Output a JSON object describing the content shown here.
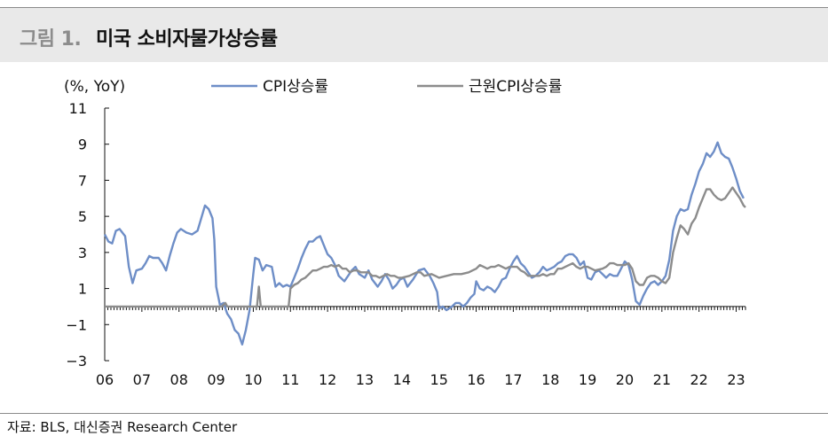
{
  "header": {
    "fig_label": "그림 1.",
    "fig_title": "미국 소비자물가상승률"
  },
  "source": "자료: BLS, 대신증권 Research Center",
  "chart_data": {
    "type": "line",
    "unit_label": "(%, YoY)",
    "ylim": [
      -3,
      11
    ],
    "yticks": [
      "11",
      "9",
      "7",
      "5",
      "3",
      "1",
      "−1",
      "−3"
    ],
    "xticks": [
      "06",
      "07",
      "08",
      "09",
      "10",
      "11",
      "12",
      "13",
      "14",
      "15",
      "16",
      "17",
      "18",
      "19",
      "20",
      "21",
      "22",
      "23"
    ],
    "x_range": [
      2006.0,
      2023.25
    ],
    "legend_placement": "top",
    "series": [
      {
        "name": "CPI상승률",
        "color": "#6e8ec7",
        "points": [
          [
            2006.0,
            4.0
          ],
          [
            2006.1,
            3.6
          ],
          [
            2006.2,
            3.5
          ],
          [
            2006.3,
            4.2
          ],
          [
            2006.4,
            4.3
          ],
          [
            2006.55,
            3.9
          ],
          [
            2006.65,
            2.2
          ],
          [
            2006.75,
            1.3
          ],
          [
            2006.85,
            2.0
          ],
          [
            2007.0,
            2.1
          ],
          [
            2007.1,
            2.4
          ],
          [
            2007.2,
            2.8
          ],
          [
            2007.3,
            2.7
          ],
          [
            2007.45,
            2.7
          ],
          [
            2007.55,
            2.4
          ],
          [
            2007.65,
            2.0
          ],
          [
            2007.75,
            2.8
          ],
          [
            2007.85,
            3.5
          ],
          [
            2007.95,
            4.1
          ],
          [
            2008.05,
            4.3
          ],
          [
            2008.2,
            4.1
          ],
          [
            2008.35,
            4.0
          ],
          [
            2008.5,
            4.2
          ],
          [
            2008.6,
            4.9
          ],
          [
            2008.7,
            5.6
          ],
          [
            2008.8,
            5.4
          ],
          [
            2008.9,
            4.9
          ],
          [
            2008.95,
            3.7
          ],
          [
            2009.0,
            1.1
          ],
          [
            2009.1,
            0.1
          ],
          [
            2009.2,
            0.2
          ],
          [
            2009.3,
            -0.4
          ],
          [
            2009.4,
            -0.7
          ],
          [
            2009.5,
            -1.3
          ],
          [
            2009.6,
            -1.5
          ],
          [
            2009.7,
            -2.1
          ],
          [
            2009.8,
            -1.3
          ],
          [
            2009.9,
            -0.2
          ],
          [
            2010.0,
            1.8
          ],
          [
            2010.05,
            2.7
          ],
          [
            2010.15,
            2.6
          ],
          [
            2010.25,
            2.0
          ],
          [
            2010.35,
            2.3
          ],
          [
            2010.5,
            2.2
          ],
          [
            2010.6,
            1.1
          ],
          [
            2010.7,
            1.3
          ],
          [
            2010.8,
            1.1
          ],
          [
            2010.9,
            1.2
          ],
          [
            2011.0,
            1.1
          ],
          [
            2011.1,
            1.6
          ],
          [
            2011.2,
            2.1
          ],
          [
            2011.3,
            2.7
          ],
          [
            2011.4,
            3.2
          ],
          [
            2011.5,
            3.6
          ],
          [
            2011.6,
            3.6
          ],
          [
            2011.7,
            3.8
          ],
          [
            2011.8,
            3.9
          ],
          [
            2011.9,
            3.4
          ],
          [
            2012.0,
            2.9
          ],
          [
            2012.1,
            2.7
          ],
          [
            2012.2,
            2.3
          ],
          [
            2012.3,
            1.7
          ],
          [
            2012.45,
            1.4
          ],
          [
            2012.55,
            1.7
          ],
          [
            2012.65,
            2.0
          ],
          [
            2012.75,
            2.2
          ],
          [
            2012.85,
            1.8
          ],
          [
            2013.0,
            1.6
          ],
          [
            2013.1,
            2.0
          ],
          [
            2013.2,
            1.5
          ],
          [
            2013.35,
            1.1
          ],
          [
            2013.45,
            1.4
          ],
          [
            2013.55,
            1.8
          ],
          [
            2013.65,
            1.5
          ],
          [
            2013.75,
            1.0
          ],
          [
            2013.85,
            1.2
          ],
          [
            2013.95,
            1.5
          ],
          [
            2014.05,
            1.6
          ],
          [
            2014.15,
            1.1
          ],
          [
            2014.3,
            1.5
          ],
          [
            2014.45,
            2.0
          ],
          [
            2014.6,
            2.1
          ],
          [
            2014.75,
            1.7
          ],
          [
            2014.85,
            1.3
          ],
          [
            2014.95,
            0.8
          ],
          [
            2015.0,
            -0.1
          ],
          [
            2015.1,
            0.0
          ],
          [
            2015.2,
            -0.2
          ],
          [
            2015.35,
            0.0
          ],
          [
            2015.45,
            0.2
          ],
          [
            2015.55,
            0.2
          ],
          [
            2015.65,
            0.0
          ],
          [
            2015.75,
            0.2
          ],
          [
            2015.85,
            0.5
          ],
          [
            2015.95,
            0.7
          ],
          [
            2016.0,
            1.4
          ],
          [
            2016.1,
            1.0
          ],
          [
            2016.2,
            0.9
          ],
          [
            2016.3,
            1.1
          ],
          [
            2016.4,
            1.0
          ],
          [
            2016.5,
            0.8
          ],
          [
            2016.6,
            1.1
          ],
          [
            2016.7,
            1.5
          ],
          [
            2016.8,
            1.6
          ],
          [
            2016.9,
            2.1
          ],
          [
            2017.0,
            2.5
          ],
          [
            2017.1,
            2.8
          ],
          [
            2017.2,
            2.4
          ],
          [
            2017.3,
            2.2
          ],
          [
            2017.4,
            1.9
          ],
          [
            2017.5,
            1.6
          ],
          [
            2017.6,
            1.7
          ],
          [
            2017.7,
            1.9
          ],
          [
            2017.8,
            2.2
          ],
          [
            2017.9,
            2.0
          ],
          [
            2018.0,
            2.1
          ],
          [
            2018.1,
            2.2
          ],
          [
            2018.2,
            2.4
          ],
          [
            2018.3,
            2.5
          ],
          [
            2018.4,
            2.8
          ],
          [
            2018.5,
            2.9
          ],
          [
            2018.6,
            2.9
          ],
          [
            2018.7,
            2.7
          ],
          [
            2018.8,
            2.3
          ],
          [
            2018.9,
            2.5
          ],
          [
            2019.0,
            1.6
          ],
          [
            2019.1,
            1.5
          ],
          [
            2019.2,
            1.9
          ],
          [
            2019.3,
            2.0
          ],
          [
            2019.4,
            1.8
          ],
          [
            2019.5,
            1.6
          ],
          [
            2019.6,
            1.8
          ],
          [
            2019.7,
            1.7
          ],
          [
            2019.8,
            1.7
          ],
          [
            2019.9,
            2.1
          ],
          [
            2020.0,
            2.5
          ],
          [
            2020.1,
            2.3
          ],
          [
            2020.2,
            1.5
          ],
          [
            2020.3,
            0.3
          ],
          [
            2020.4,
            0.1
          ],
          [
            2020.5,
            0.6
          ],
          [
            2020.6,
            1.0
          ],
          [
            2020.7,
            1.3
          ],
          [
            2020.8,
            1.4
          ],
          [
            2020.9,
            1.2
          ],
          [
            2021.0,
            1.4
          ],
          [
            2021.1,
            1.7
          ],
          [
            2021.2,
            2.6
          ],
          [
            2021.3,
            4.2
          ],
          [
            2021.4,
            5.0
          ],
          [
            2021.5,
            5.4
          ],
          [
            2021.6,
            5.3
          ],
          [
            2021.7,
            5.4
          ],
          [
            2021.8,
            6.2
          ],
          [
            2021.9,
            6.8
          ],
          [
            2022.0,
            7.5
          ],
          [
            2022.1,
            7.9
          ],
          [
            2022.2,
            8.5
          ],
          [
            2022.3,
            8.3
          ],
          [
            2022.4,
            8.6
          ],
          [
            2022.5,
            9.1
          ],
          [
            2022.6,
            8.5
          ],
          [
            2022.7,
            8.3
          ],
          [
            2022.8,
            8.2
          ],
          [
            2022.9,
            7.7
          ],
          [
            2023.0,
            7.1
          ],
          [
            2023.1,
            6.4
          ],
          [
            2023.2,
            6.0
          ]
        ]
      },
      {
        "name": "근원CPI상승률",
        "color": "#8c8c8c",
        "points": [
          [
            2006.0,
            0.0
          ],
          [
            2008.0,
            0.0
          ],
          [
            2009.0,
            0.0
          ],
          [
            2009.15,
            0.0
          ],
          [
            2009.25,
            0.2
          ],
          [
            2009.3,
            0.0
          ],
          [
            2010.1,
            0.0
          ],
          [
            2010.15,
            1.1
          ],
          [
            2010.2,
            0.0
          ],
          [
            2010.95,
            0.0
          ],
          [
            2011.0,
            1.0
          ],
          [
            2011.1,
            1.2
          ],
          [
            2011.2,
            1.3
          ],
          [
            2011.3,
            1.5
          ],
          [
            2011.4,
            1.6
          ],
          [
            2011.5,
            1.8
          ],
          [
            2011.6,
            2.0
          ],
          [
            2011.7,
            2.0
          ],
          [
            2011.8,
            2.1
          ],
          [
            2011.9,
            2.2
          ],
          [
            2012.0,
            2.2
          ],
          [
            2012.1,
            2.3
          ],
          [
            2012.2,
            2.2
          ],
          [
            2012.3,
            2.3
          ],
          [
            2012.4,
            2.1
          ],
          [
            2012.5,
            2.1
          ],
          [
            2012.6,
            1.9
          ],
          [
            2012.7,
            2.0
          ],
          [
            2012.8,
            2.0
          ],
          [
            2012.9,
            1.9
          ],
          [
            2013.0,
            1.9
          ],
          [
            2013.1,
            1.9
          ],
          [
            2013.2,
            1.7
          ],
          [
            2013.3,
            1.7
          ],
          [
            2013.4,
            1.6
          ],
          [
            2013.5,
            1.7
          ],
          [
            2013.6,
            1.8
          ],
          [
            2013.7,
            1.7
          ],
          [
            2013.8,
            1.7
          ],
          [
            2013.9,
            1.6
          ],
          [
            2014.0,
            1.6
          ],
          [
            2014.2,
            1.7
          ],
          [
            2014.4,
            1.9
          ],
          [
            2014.5,
            1.9
          ],
          [
            2014.6,
            1.7
          ],
          [
            2014.8,
            1.8
          ],
          [
            2014.9,
            1.7
          ],
          [
            2015.0,
            1.6
          ],
          [
            2015.2,
            1.7
          ],
          [
            2015.4,
            1.8
          ],
          [
            2015.5,
            1.8
          ],
          [
            2015.6,
            1.8
          ],
          [
            2015.8,
            1.9
          ],
          [
            2015.9,
            2.0
          ],
          [
            2016.0,
            2.1
          ],
          [
            2016.1,
            2.3
          ],
          [
            2016.2,
            2.2
          ],
          [
            2016.3,
            2.1
          ],
          [
            2016.4,
            2.2
          ],
          [
            2016.5,
            2.2
          ],
          [
            2016.6,
            2.3
          ],
          [
            2016.7,
            2.2
          ],
          [
            2016.8,
            2.1
          ],
          [
            2016.9,
            2.2
          ],
          [
            2017.0,
            2.2
          ],
          [
            2017.1,
            2.2
          ],
          [
            2017.2,
            2.0
          ],
          [
            2017.3,
            1.9
          ],
          [
            2017.4,
            1.7
          ],
          [
            2017.5,
            1.7
          ],
          [
            2017.6,
            1.7
          ],
          [
            2017.7,
            1.7
          ],
          [
            2017.8,
            1.8
          ],
          [
            2017.9,
            1.7
          ],
          [
            2018.0,
            1.8
          ],
          [
            2018.1,
            1.8
          ],
          [
            2018.2,
            2.1
          ],
          [
            2018.3,
            2.1
          ],
          [
            2018.4,
            2.2
          ],
          [
            2018.5,
            2.3
          ],
          [
            2018.6,
            2.4
          ],
          [
            2018.7,
            2.2
          ],
          [
            2018.8,
            2.1
          ],
          [
            2018.9,
            2.2
          ],
          [
            2019.0,
            2.2
          ],
          [
            2019.2,
            2.0
          ],
          [
            2019.4,
            2.1
          ],
          [
            2019.5,
            2.2
          ],
          [
            2019.6,
            2.4
          ],
          [
            2019.7,
            2.4
          ],
          [
            2019.8,
            2.3
          ],
          [
            2019.9,
            2.3
          ],
          [
            2020.0,
            2.3
          ],
          [
            2020.1,
            2.4
          ],
          [
            2020.2,
            2.1
          ],
          [
            2020.3,
            1.4
          ],
          [
            2020.4,
            1.2
          ],
          [
            2020.5,
            1.2
          ],
          [
            2020.6,
            1.6
          ],
          [
            2020.7,
            1.7
          ],
          [
            2020.8,
            1.7
          ],
          [
            2020.9,
            1.6
          ],
          [
            2021.0,
            1.4
          ],
          [
            2021.1,
            1.3
          ],
          [
            2021.2,
            1.6
          ],
          [
            2021.3,
            3.0
          ],
          [
            2021.4,
            3.8
          ],
          [
            2021.5,
            4.5
          ],
          [
            2021.6,
            4.3
          ],
          [
            2021.7,
            4.0
          ],
          [
            2021.8,
            4.6
          ],
          [
            2021.9,
            4.9
          ],
          [
            2022.0,
            5.5
          ],
          [
            2022.1,
            6.0
          ],
          [
            2022.2,
            6.5
          ],
          [
            2022.3,
            6.5
          ],
          [
            2022.4,
            6.2
          ],
          [
            2022.5,
            6.0
          ],
          [
            2022.6,
            5.9
          ],
          [
            2022.7,
            6.0
          ],
          [
            2022.8,
            6.3
          ],
          [
            2022.9,
            6.6
          ],
          [
            2023.0,
            6.3
          ],
          [
            2023.1,
            6.0
          ],
          [
            2023.2,
            5.6
          ],
          [
            2023.25,
            5.5
          ]
        ]
      }
    ]
  }
}
